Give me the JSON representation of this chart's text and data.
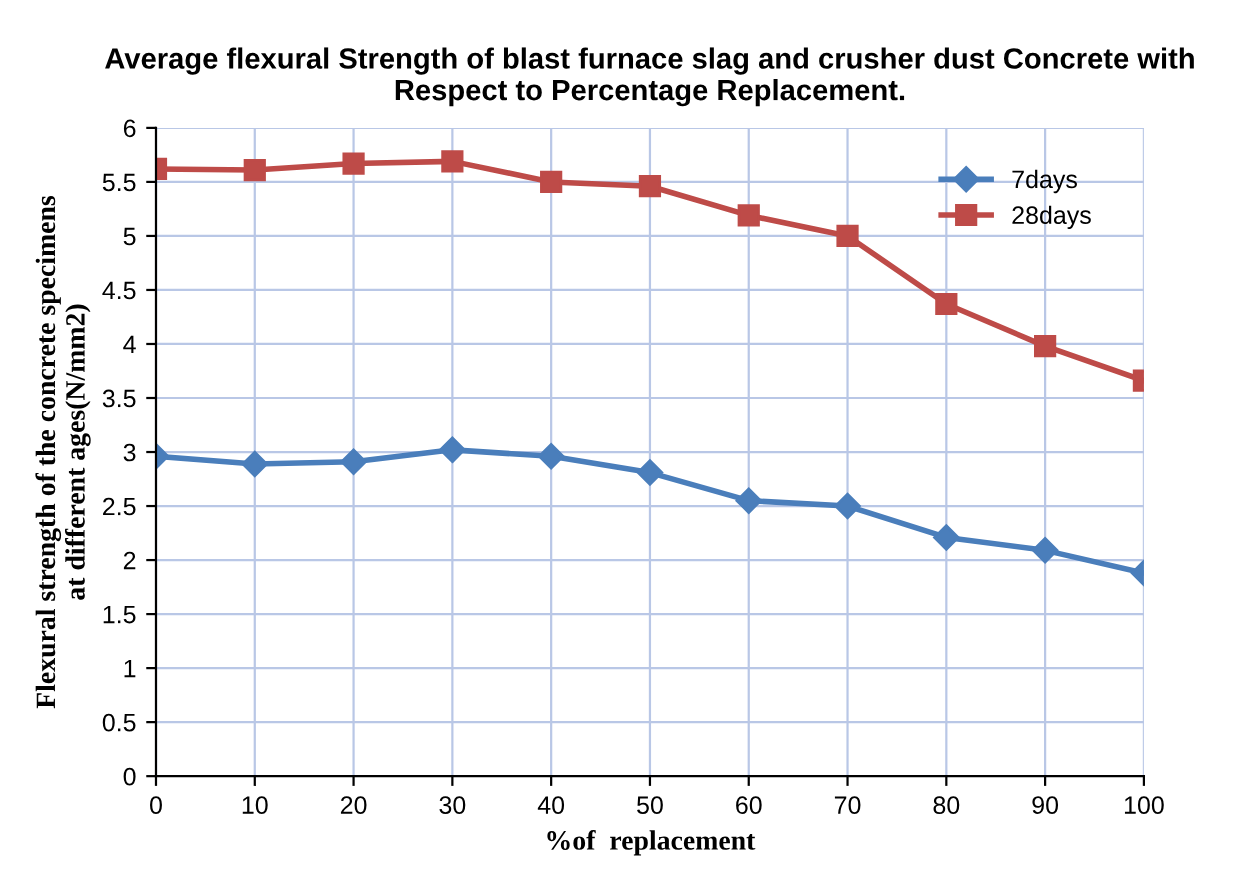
{
  "chart_data": {
    "type": "line",
    "title": "Average flexural Strength of blast furnace slag and crusher dust Concrete with\nRespect to Percentage Replacement.",
    "xlabel": "%of  replacement",
    "ylabel": "Flexural strength of the concrete specimens\nat different ages(N/mm2)",
    "x": [
      0,
      10,
      20,
      30,
      40,
      50,
      60,
      70,
      80,
      90,
      100
    ],
    "series": [
      {
        "name": "7days",
        "color": "#4a7ebb",
        "marker": "diamond",
        "values": [
          2.96,
          2.89,
          2.91,
          3.02,
          2.96,
          2.81,
          2.55,
          2.5,
          2.21,
          2.09,
          1.88
        ]
      },
      {
        "name": "28days",
        "color": "#be4b48",
        "marker": "square",
        "values": [
          5.62,
          5.61,
          5.67,
          5.69,
          5.5,
          5.46,
          5.19,
          5.0,
          4.37,
          3.98,
          3.66
        ]
      }
    ],
    "xlim": [
      0,
      100
    ],
    "xticks": [
      0,
      10,
      20,
      30,
      40,
      50,
      60,
      70,
      80,
      90,
      100
    ],
    "ylim": [
      0,
      6
    ],
    "yticks": [
      0,
      0.5,
      1,
      1.5,
      2,
      2.5,
      3,
      3.5,
      4,
      4.5,
      5,
      5.5,
      6
    ],
    "grid": true,
    "legend": "top right",
    "line_style": "solid"
  }
}
